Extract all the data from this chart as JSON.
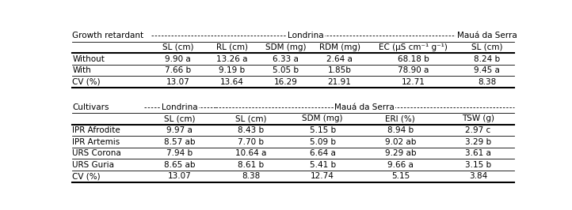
{
  "section1_header_label": "Growth retardant",
  "section1_location1": "Londrina",
  "section1_location2": "Mauá da Serra",
  "section1_col_headers": [
    "SL (cm)",
    "RL (cm)",
    "SDM (mg)",
    "RDM (mg)",
    "EC (μS cm⁻¹ g⁻¹)",
    "SL (cm)"
  ],
  "section1_rows": [
    [
      "Without",
      "9.90 a",
      "13.26 a",
      "6.33 a",
      "2.64 a",
      "68.18 b",
      "8.24 b"
    ],
    [
      "With",
      "7.66 b",
      "9.19 b",
      "5.05 b",
      "1.85b",
      "78.90 a",
      "9.45 a"
    ],
    [
      "CV (%)",
      "13.07",
      "13.64",
      "16.29",
      "21.91",
      "12.71",
      "8.38"
    ]
  ],
  "section2_header_label": "Cultivars",
  "section2_location1": "Londrina",
  "section2_location2": "Mauá da Serra",
  "section2_col_headers": [
    "SL (cm)",
    "SL (cm)",
    "SDM (mg)",
    "ERI (%)",
    "TSW (g)"
  ],
  "section2_rows": [
    [
      "IPR Afrodite",
      "9.97 a",
      "8.43 b",
      "5.15 b",
      "8.94 b",
      "2.97 c"
    ],
    [
      "IPR Artemis",
      "8.57 ab",
      "7.70 b",
      "5.09 b",
      "9.02 ab",
      "3.29 b"
    ],
    [
      "URS Corona",
      "7.94 b",
      "10.64 a",
      "6.64 a",
      "9.29 ab",
      "3.61 a"
    ],
    [
      "URS Guria",
      "8.65 ab",
      "8.61 b",
      "5.41 b",
      "9.66 a",
      "3.15 b"
    ],
    [
      "CV (%)",
      "13.07",
      "8.38",
      "12.74",
      "5.15",
      "3.84"
    ]
  ],
  "bg_color": "white",
  "text_color": "black",
  "font_size": 7.5
}
